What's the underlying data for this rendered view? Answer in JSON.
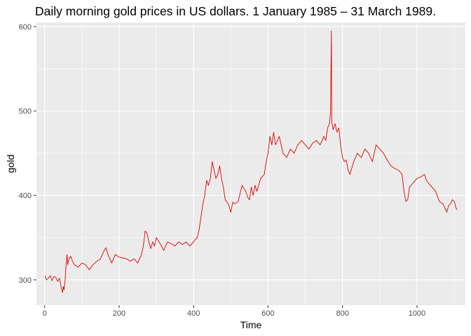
{
  "chart_data": {
    "type": "line",
    "title": "Daily morning gold prices in US dollars. 1 January 1985 – 31 March 1989.",
    "xlabel": "Time",
    "ylabel": "gold",
    "xlim": [
      -22,
      1130
    ],
    "ylim": [
      270,
      605
    ],
    "xticks": [
      0,
      200,
      400,
      600,
      800,
      1000
    ],
    "yticks": [
      300,
      400,
      500,
      600
    ],
    "grid": true,
    "legend": "none",
    "colors": {
      "panel": "#ebebeb",
      "grid": "#ffffff",
      "line": "#e00000",
      "tick_text": "#4d4d4d"
    },
    "series": [
      {
        "x": [
          1,
          5,
          10,
          15,
          20,
          25,
          30,
          35,
          40,
          45,
          48,
          50,
          52,
          55,
          58,
          60,
          62,
          65,
          70,
          75,
          80,
          90,
          100,
          110,
          120,
          130,
          140,
          150,
          160,
          165,
          170,
          180,
          190,
          200,
          210,
          220,
          230,
          240,
          250,
          260,
          265,
          270,
          275,
          280,
          285,
          290,
          295,
          300,
          310,
          320,
          330,
          340,
          350,
          360,
          370,
          380,
          390,
          400,
          405,
          410,
          415,
          420,
          425,
          430,
          435,
          440,
          445,
          450,
          455,
          460,
          465,
          470,
          475,
          480,
          485,
          490,
          495,
          500,
          505,
          510,
          520,
          530,
          540,
          545,
          550,
          555,
          560,
          565,
          570,
          580,
          590,
          595,
          600,
          605,
          610,
          615,
          620,
          630,
          640,
          650,
          660,
          670,
          680,
          690,
          700,
          710,
          720,
          730,
          740,
          750,
          755,
          760,
          765,
          768,
          769,
          770,
          771,
          772,
          775,
          780,
          785,
          790,
          795,
          800,
          805,
          810,
          815,
          820,
          830,
          840,
          850,
          860,
          870,
          880,
          890,
          900,
          910,
          920,
          930,
          940,
          950,
          960,
          965,
          970,
          975,
          980,
          990,
          1000,
          1010,
          1020,
          1025,
          1030,
          1040,
          1050,
          1060,
          1070,
          1075,
          1080,
          1085,
          1090,
          1095,
          1100,
          1105,
          1108
        ],
        "y": [
          305,
          300,
          302,
          305,
          299,
          304,
          303,
          298,
          302,
          290,
          285,
          292,
          288,
          300,
          320,
          330,
          318,
          325,
          328,
          322,
          318,
          315,
          320,
          318,
          312,
          318,
          322,
          325,
          335,
          338,
          330,
          320,
          330,
          327,
          326,
          325,
          322,
          325,
          320,
          330,
          340,
          358,
          355,
          345,
          337,
          345,
          340,
          350,
          343,
          335,
          345,
          343,
          340,
          345,
          342,
          345,
          340,
          345,
          348,
          350,
          360,
          375,
          390,
          400,
          418,
          412,
          420,
          440,
          430,
          420,
          425,
          435,
          420,
          410,
          395,
          392,
          388,
          380,
          392,
          390,
          393,
          412,
          405,
          398,
          395,
          410,
          400,
          412,
          405,
          420,
          425,
          440,
          450,
          470,
          460,
          475,
          460,
          470,
          450,
          445,
          455,
          450,
          460,
          465,
          460,
          455,
          462,
          465,
          460,
          470,
          465,
          480,
          485,
          500,
          550,
          595,
          490,
          485,
          478,
          485,
          475,
          480,
          460,
          445,
          440,
          442,
          430,
          425,
          440,
          450,
          445,
          455,
          450,
          440,
          460,
          455,
          450,
          442,
          435,
          432,
          430,
          425,
          405,
          393,
          395,
          410,
          415,
          420,
          422,
          425,
          418,
          415,
          410,
          405,
          393,
          390,
          385,
          380,
          388,
          390,
          395,
          393,
          385,
          383
        ]
      }
    ]
  }
}
